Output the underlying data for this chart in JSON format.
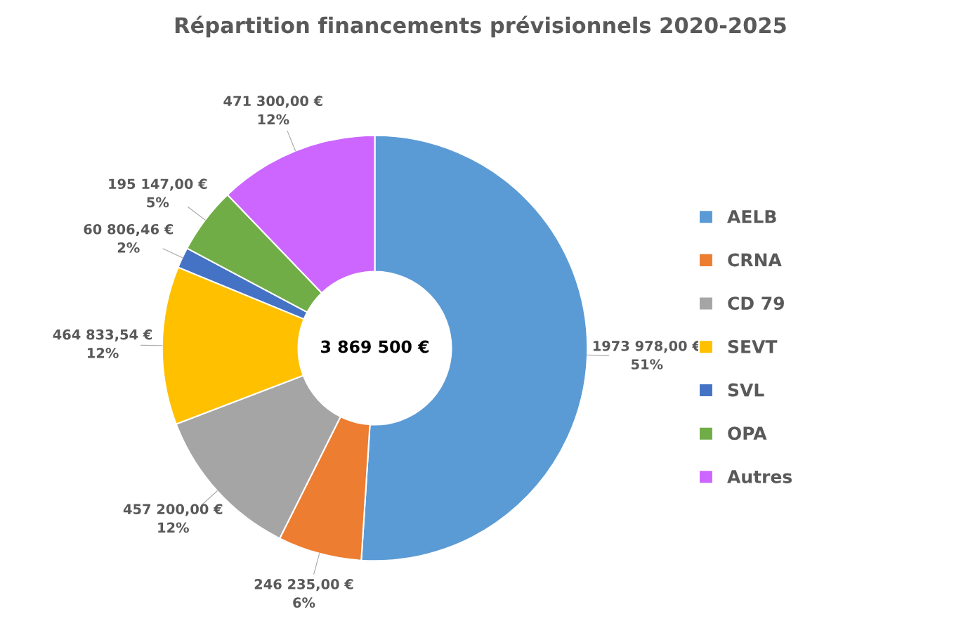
{
  "chart_data": {
    "type": "donut",
    "title": "Répartition financements prévisionnels 2020-2025",
    "categories": [
      "AELB",
      "CRNA",
      "CD 79",
      "SEVT",
      "SVL",
      "OPA",
      "Autres"
    ],
    "values": [
      1973978.0,
      246235.0,
      457200.0,
      464833.54,
      60806.46,
      195147.0,
      471300.0
    ],
    "colors": [
      "#5b9bd5",
      "#ed7d31",
      "#a5a5a5",
      "#ffc000",
      "#4472c4",
      "#70ad47",
      "#cc66ff"
    ],
    "value_labels": [
      "1973 978,00 €\n51%",
      "246 235,00 €\n6%",
      "457 200,00 €\n12%",
      "464 833,54 €\n12%",
      "60 806,46 €\n2%",
      "195 147,00 €\n5%",
      "471 300,00 €\n12%"
    ],
    "annotations": [
      "3 869 500 €"
    ],
    "legend": "right"
  }
}
